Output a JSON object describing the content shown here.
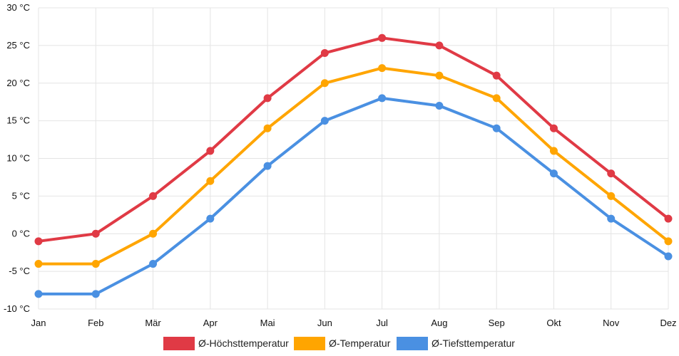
{
  "chart_data": {
    "type": "line",
    "categories": [
      "Jan",
      "Feb",
      "Mär",
      "Apr",
      "Mai",
      "Jun",
      "Jul",
      "Aug",
      "Sep",
      "Okt",
      "Nov",
      "Dez"
    ],
    "y_tick_labels": [
      "-10 °C",
      "-5 °C",
      "0 °C",
      "5 °C",
      "10 °C",
      "15 °C",
      "20 °C",
      "25 °C",
      "30 °C"
    ],
    "y_ticks": [
      -10,
      -5,
      0,
      5,
      10,
      15,
      20,
      25,
      30
    ],
    "ylim": [
      -10,
      30
    ],
    "grid": true,
    "legend_position": "bottom",
    "series": [
      {
        "name": "Ø-Höchsttemperatur",
        "color": "#E03A45",
        "values": [
          -1,
          0,
          5,
          11,
          18,
          24,
          26,
          25,
          21,
          14,
          8,
          2
        ]
      },
      {
        "name": "Ø-Temperatur",
        "color": "#FFA500",
        "values": [
          -4,
          -4,
          0,
          7,
          14,
          20,
          22,
          21,
          18,
          11,
          5,
          -1
        ]
      },
      {
        "name": "Ø-Tiefsttemperatur",
        "color": "#4A90E2",
        "values": [
          -8,
          -8,
          -4,
          2,
          9,
          15,
          18,
          17,
          14,
          8,
          2,
          -3
        ]
      }
    ]
  }
}
